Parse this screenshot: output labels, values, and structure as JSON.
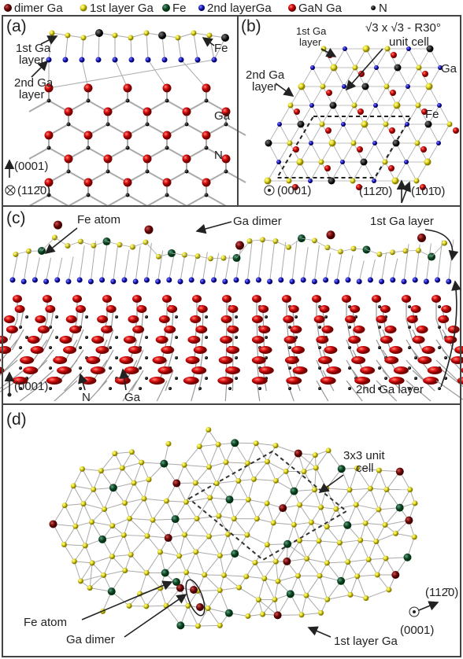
{
  "legend": [
    "dimer Ga",
    "1st layer Ga",
    "Fe",
    "2nd layerGa",
    "GaN Ga",
    "N"
  ],
  "panels": {
    "a": {
      "tag": "(a)",
      "layer1": [
        "1st Ga",
        "layer"
      ],
      "fe": "Fe",
      "layer2": [
        "2nd Ga",
        "layer"
      ],
      "ga": "Ga",
      "n": "N",
      "axis_up": "(0001)",
      "axis_in": "(112̄0)"
    },
    "b": {
      "tag": "(b)",
      "layer1": [
        "1st Ga",
        "layer"
      ],
      "cell": [
        "√3 x √3 - R30°",
        "unit cell"
      ],
      "layer2": [
        "2nd Ga",
        "layer"
      ],
      "ga": "Ga",
      "fe": "Fe",
      "axis_out": "(0001)",
      "axis_1": "(112̄0)",
      "axis_2": "(101̄0)"
    },
    "c": {
      "tag": "(c)",
      "fe": "Fe atom",
      "dimer": "Ga dimer",
      "layer1": "1st Ga layer",
      "layer2": "2nd Ga layer",
      "axis_up": "(0001)",
      "n": "N",
      "ga": "Ga"
    },
    "d": {
      "tag": "(d)",
      "cell": [
        "3x3 unit",
        "cell"
      ],
      "fe": "Fe atom",
      "dimer": "Ga dimer",
      "layer1": "1st layer Ga",
      "axis_1": "(112̄0)",
      "axis_out": "(0001)"
    }
  }
}
